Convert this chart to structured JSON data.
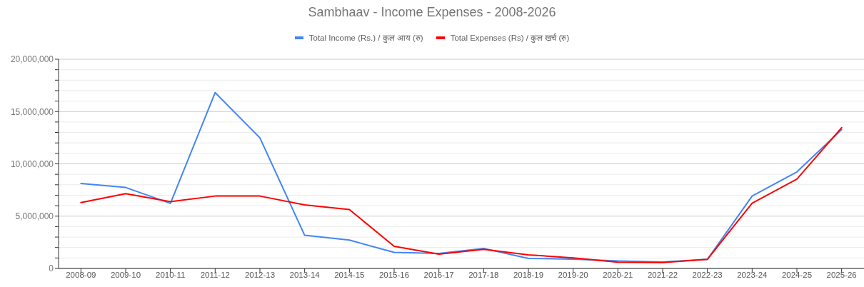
{
  "chart_data": {
    "type": "line",
    "title": "Sambhaav - Income Expenses - 2008-2026",
    "categories": [
      "2008-09",
      "2009-10",
      "2010-11",
      "2011-12",
      "2012-13",
      "2013-14",
      "2014-15",
      "2015-16",
      "2016-17",
      "2017-18",
      "2018-19",
      "2019-20",
      "2020-21",
      "2021-22",
      "2022-23",
      "2023-24",
      "2024-25",
      "2025-26"
    ],
    "series": [
      {
        "name": "Total Income (Rs.) / कुल आय (रु)",
        "color": "#4285f4",
        "values": [
          8130000,
          7740000,
          6220000,
          16810000,
          12480000,
          3170000,
          2710000,
          1530000,
          1440000,
          1910000,
          960000,
          890000,
          710000,
          620000,
          870000,
          6920000,
          9230000,
          13280000
        ]
      },
      {
        "name": "Total Expenses (Rs) / कुल खर्च (रु)",
        "color": "#ff0000",
        "values": [
          6290000,
          7150000,
          6380000,
          6920000,
          6920000,
          6080000,
          5630000,
          2120000,
          1370000,
          1820000,
          1300000,
          1010000,
          590000,
          570000,
          870000,
          6240000,
          8540000,
          13460000
        ]
      }
    ],
    "ylim": [
      0,
      20000000
    ],
    "yticks": [
      0,
      {
        "value": 1000000,
        "label": null
      },
      {
        "value": 2000000,
        "label": null
      },
      {
        "value": 3000000,
        "label": null
      },
      {
        "value": 4000000,
        "label": null
      },
      {
        "value": 5000000,
        "label": "5,000,000"
      },
      {
        "value": 6000000,
        "label": null
      },
      {
        "value": 7000000,
        "label": null
      },
      {
        "value": 8000000,
        "label": null
      },
      {
        "value": 9000000,
        "label": null
      },
      {
        "value": 10000000,
        "label": "10,000,000"
      },
      {
        "value": 11000000,
        "label": null
      },
      {
        "value": 12000000,
        "label": null
      },
      {
        "value": 13000000,
        "label": null
      },
      {
        "value": 14000000,
        "label": null
      },
      {
        "value": 15000000,
        "label": "15,000,000"
      },
      {
        "value": 16000000,
        "label": null
      },
      {
        "value": 17000000,
        "label": null
      },
      {
        "value": 18000000,
        "label": null
      },
      {
        "value": 19000000,
        "label": null
      },
      {
        "value": 20000000,
        "label": "20,000,000"
      }
    ],
    "grid": "y",
    "legend": "top"
  }
}
